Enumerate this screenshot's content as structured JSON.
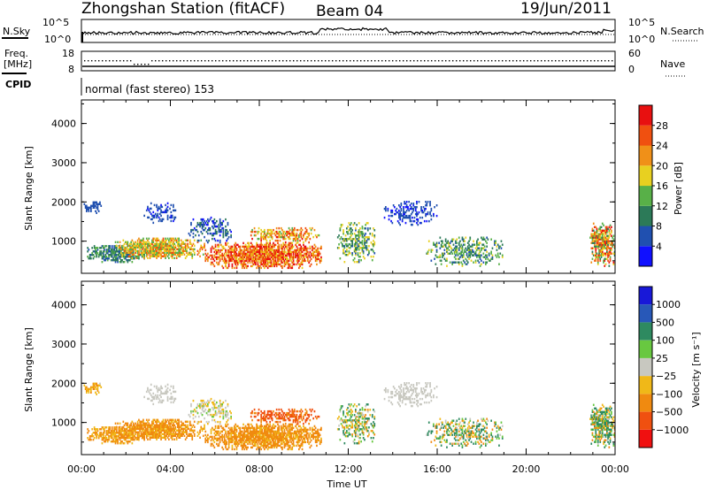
{
  "header": {
    "station": "Zhongshan Station (fitACF)",
    "beam": "Beam 04",
    "date": "19/Jun/2011"
  },
  "noise_panel": {
    "left_label": "N.Sky",
    "left_ticks": [
      "10^5",
      "10^0"
    ],
    "right_ticks": [
      "10^5",
      "10^0"
    ],
    "right_label": "N.Search"
  },
  "freq_panel": {
    "left_label_1": "Freq.",
    "left_label_2": "[MHz]",
    "left_ticks": [
      "18",
      "8"
    ],
    "right_ticks": [
      "60",
      "0"
    ],
    "right_label": "Nave"
  },
  "cpid": {
    "label": "CPID",
    "value": "normal (fast stereo) 153"
  },
  "x_axis": {
    "label": "Time UT",
    "ticks": [
      "00:00",
      "04:00",
      "08:00",
      "12:00",
      "16:00",
      "20:00",
      "00:00"
    ]
  },
  "colors": {
    "power_scale": [
      "#1010ff",
      "#2050b0",
      "#2c7a58",
      "#58b048",
      "#e8d020",
      "#f09018",
      "#f05010",
      "#e81010"
    ],
    "velocity_scale": [
      "#f01010",
      "#f05010",
      "#f08a10",
      "#f0b818",
      "#c8c8c0",
      "#68c840",
      "#2e8a60",
      "#2858b8",
      "#1818d8"
    ]
  },
  "chart_data": [
    {
      "type": "heatmap",
      "title": "Power",
      "ylabel": "Slant Range [km]",
      "yticks": [
        "1000",
        "2000",
        "3000",
        "4000"
      ],
      "ylim": [
        180,
        4600
      ],
      "xlim": [
        0,
        24
      ],
      "colorbar": {
        "label": "Power [dB]",
        "ticks": [
          "4",
          "8",
          "12",
          "16",
          "20",
          "24",
          "28"
        ],
        "range": [
          0,
          32
        ]
      },
      "clusters": [
        {
          "t": [
            0.2,
            2.8
          ],
          "r": [
            450,
            900
          ],
          "dens": 0.7,
          "v": [
            6,
            14
          ]
        },
        {
          "t": [
            0.1,
            0.9
          ],
          "r": [
            1700,
            2000
          ],
          "dens": 0.6,
          "v": [
            4,
            8
          ]
        },
        {
          "t": [
            1.5,
            5.5
          ],
          "r": [
            550,
            1050
          ],
          "dens": 0.85,
          "v": [
            12,
            26
          ]
        },
        {
          "t": [
            5.5,
            10.8
          ],
          "r": [
            300,
            950
          ],
          "dens": 0.85,
          "v": [
            18,
            32
          ]
        },
        {
          "t": [
            7.5,
            10.8
          ],
          "r": [
            950,
            1350
          ],
          "dens": 0.5,
          "v": [
            14,
            30
          ]
        },
        {
          "t": [
            2.8,
            4.2
          ],
          "r": [
            1450,
            1950
          ],
          "dens": 0.4,
          "v": [
            3,
            8
          ]
        },
        {
          "t": [
            4.8,
            6.8
          ],
          "r": [
            950,
            1600
          ],
          "dens": 0.35,
          "v": [
            3,
            10
          ]
        },
        {
          "t": [
            11.5,
            13.2
          ],
          "r": [
            450,
            1450
          ],
          "dens": 0.45,
          "v": [
            6,
            20
          ]
        },
        {
          "t": [
            13.5,
            16.0
          ],
          "r": [
            1400,
            2000
          ],
          "dens": 0.35,
          "v": [
            2,
            8
          ]
        },
        {
          "t": [
            15.5,
            19.0
          ],
          "r": [
            350,
            1100
          ],
          "dens": 0.4,
          "v": [
            6,
            18
          ]
        },
        {
          "t": [
            22.8,
            24.0
          ],
          "r": [
            350,
            1450
          ],
          "dens": 0.7,
          "v": [
            10,
            30
          ]
        }
      ]
    },
    {
      "type": "heatmap",
      "title": "Velocity",
      "ylabel": "Slant Range [km]",
      "yticks": [
        "1000",
        "2000",
        "3000",
        "4000"
      ],
      "ylim": [
        180,
        4600
      ],
      "xlim": [
        0,
        24
      ],
      "colorbar": {
        "label": "Velocity [m s⁻¹]",
        "ticks": [
          "1000",
          "500",
          "100",
          "25",
          "−25",
          "−100",
          "−500",
          "−1000"
        ],
        "range": [
          -1200,
          1200
        ]
      },
      "clusters": [
        {
          "t": [
            0.2,
            2.8
          ],
          "r": [
            450,
            900
          ],
          "dens": 0.7,
          "v": [
            -180,
            -40
          ]
        },
        {
          "t": [
            0.1,
            0.9
          ],
          "r": [
            1700,
            2000
          ],
          "dens": 0.6,
          "v": [
            -140,
            -20
          ]
        },
        {
          "t": [
            1.5,
            5.5
          ],
          "r": [
            550,
            1050
          ],
          "dens": 0.85,
          "v": [
            -200,
            -60
          ]
        },
        {
          "t": [
            5.5,
            10.8
          ],
          "r": [
            300,
            950
          ],
          "dens": 0.85,
          "v": [
            -220,
            -60
          ]
        },
        {
          "t": [
            7.5,
            10.8
          ],
          "r": [
            950,
            1350
          ],
          "dens": 0.5,
          "v": [
            -900,
            -300
          ]
        },
        {
          "t": [
            2.8,
            4.2
          ],
          "r": [
            1450,
            1950
          ],
          "dens": 0.4,
          "v": [
            -20,
            20
          ]
        },
        {
          "t": [
            4.8,
            6.8
          ],
          "r": [
            950,
            1600
          ],
          "dens": 0.35,
          "v": [
            -60,
            40
          ]
        },
        {
          "t": [
            11.5,
            13.2
          ],
          "r": [
            450,
            1450
          ],
          "dens": 0.45,
          "v": [
            -160,
            200
          ]
        },
        {
          "t": [
            13.5,
            16.0
          ],
          "r": [
            1400,
            2000
          ],
          "dens": 0.35,
          "v": [
            -20,
            20
          ]
        },
        {
          "t": [
            15.5,
            19.0
          ],
          "r": [
            350,
            1100
          ],
          "dens": 0.4,
          "v": [
            -200,
            300
          ]
        },
        {
          "t": [
            22.8,
            24.0
          ],
          "r": [
            350,
            1450
          ],
          "dens": 0.7,
          "v": [
            -160,
            300
          ]
        }
      ]
    }
  ]
}
